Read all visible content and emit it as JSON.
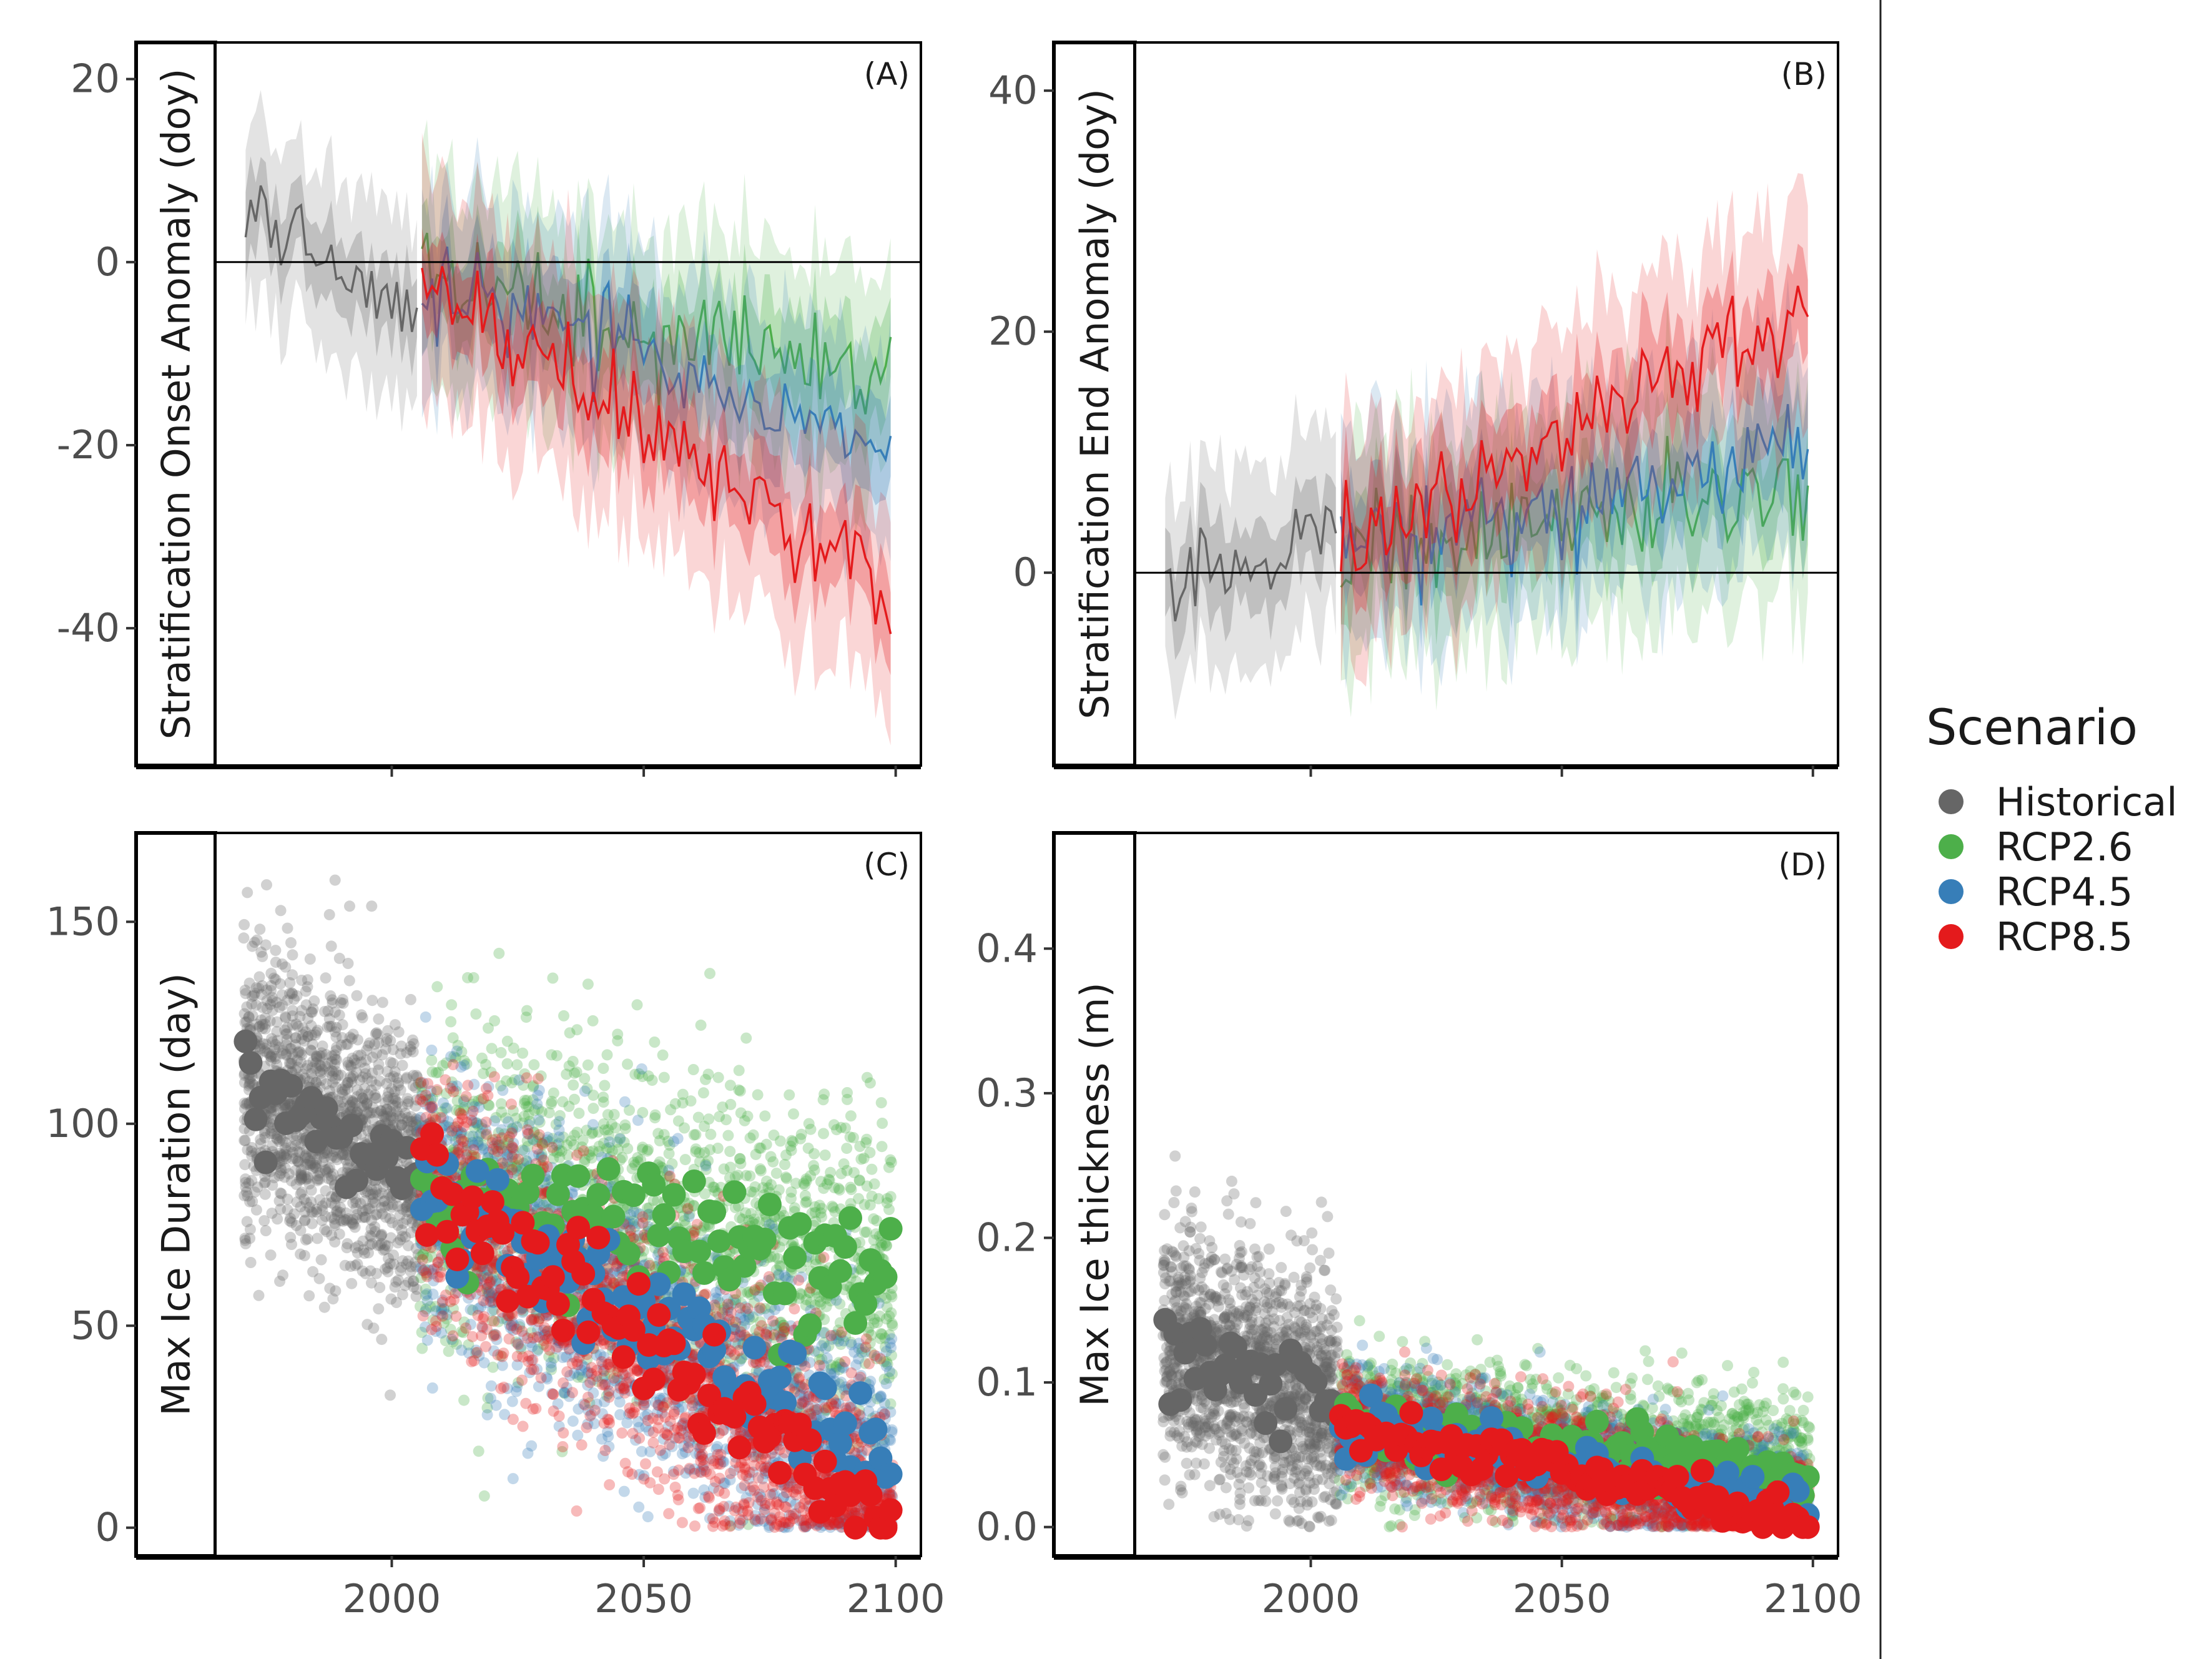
{
  "chart_data": [
    {
      "panel": "(A)",
      "type": "line",
      "ylabel": "Stratification Onset Anomaly (doy)",
      "xlim": [
        1965,
        2105
      ],
      "ylim": [
        -55,
        24
      ],
      "xticks": [
        2000,
        2050,
        2100
      ],
      "yticks": [
        20,
        0,
        -20,
        -40
      ],
      "ytick_labels": [
        "20",
        "0",
        "-20",
        "-40"
      ],
      "hline": 0,
      "xtick_labels_shown": false,
      "series": [
        {
          "name": "Historical",
          "color": "#666666",
          "x": [
            1971,
            2005
          ],
          "center": [
            6,
            -7
          ],
          "band_inner": 4,
          "band_outer": 10
        },
        {
          "name": "RCP2.6",
          "color": "#4daf4a",
          "x": [
            2006,
            2099
          ],
          "center": [
            -2,
            -12
          ],
          "band_inner": 5,
          "band_outer": 11
        },
        {
          "name": "RCP4.5",
          "color": "#377eb8",
          "x": [
            2006,
            2099
          ],
          "center": [
            -2,
            -20
          ],
          "band_inner": 5,
          "band_outer": 11
        },
        {
          "name": "RCP8.5",
          "color": "#e41a1c",
          "x": [
            2006,
            2099
          ],
          "center": [
            -2,
            -36
          ],
          "band_inner": 5,
          "band_outer": 12
        }
      ]
    },
    {
      "panel": "(B)",
      "type": "line",
      "ylabel": "Stratification End Anomaly (doy)",
      "xlim": [
        1965,
        2105
      ],
      "ylim": [
        -16,
        44
      ],
      "xticks": [
        2000,
        2050,
        2100
      ],
      "yticks": [
        40,
        20,
        0
      ],
      "ytick_labels": [
        "40",
        "20",
        "0"
      ],
      "hline": 0,
      "xtick_labels_shown": false,
      "series": [
        {
          "name": "Historical",
          "color": "#666666",
          "x": [
            1971,
            2005
          ],
          "center": [
            -3,
            3
          ],
          "band_inner": 3.5,
          "band_outer": 8
        },
        {
          "name": "RCP2.6",
          "color": "#4daf4a",
          "x": [
            2006,
            2099
          ],
          "center": [
            2,
            6
          ],
          "band_inner": 4,
          "band_outer": 9
        },
        {
          "name": "RCP4.5",
          "color": "#377eb8",
          "x": [
            2006,
            2099
          ],
          "center": [
            2,
            10
          ],
          "band_inner": 4,
          "band_outer": 9
        },
        {
          "name": "RCP8.5",
          "color": "#e41a1c",
          "x": [
            2006,
            2099
          ],
          "center": [
            2,
            22
          ],
          "band_inner": 4,
          "band_outer": 9
        }
      ]
    },
    {
      "panel": "(C)",
      "type": "scatter",
      "ylabel": "Max Ice Duration (day)",
      "xlim": [
        1965,
        2105
      ],
      "ylim": [
        -7,
        172
      ],
      "xticks": [
        2000,
        2050,
        2100
      ],
      "xtick_labels": [
        "2000",
        "2050",
        "2100"
      ],
      "yticks": [
        150,
        100,
        50,
        0
      ],
      "ytick_labels": [
        "150",
        "100",
        "50",
        "0"
      ],
      "series": [
        {
          "name": "Historical",
          "color": "#666666",
          "x": [
            1971,
            2005
          ],
          "mean": [
            110,
            88
          ],
          "spread": 28
        },
        {
          "name": "RCP2.6",
          "color": "#4daf4a",
          "x": [
            2006,
            2099
          ],
          "mean": [
            85,
            60
          ],
          "spread": 35
        },
        {
          "name": "RCP4.5",
          "color": "#377eb8",
          "x": [
            2006,
            2099
          ],
          "mean": [
            85,
            12
          ],
          "spread": 30
        },
        {
          "name": "RCP8.5",
          "color": "#e41a1c",
          "x": [
            2006,
            2099
          ],
          "mean": [
            85,
            1
          ],
          "spread": 28
        }
      ]
    },
    {
      "panel": "(D)",
      "type": "scatter",
      "ylabel": "Max Ice thickness (m)",
      "xlim": [
        1965,
        2105
      ],
      "ylim": [
        -0.02,
        0.48
      ],
      "xticks": [
        2000,
        2050,
        2100
      ],
      "xtick_labels": [
        "2000",
        "2050",
        "2100"
      ],
      "yticks": [
        0.4,
        0.3,
        0.2,
        0.1,
        0.0
      ],
      "ytick_labels": [
        "0.4",
        "0.3",
        "0.2",
        "0.1",
        "0.0"
      ],
      "series": [
        {
          "name": "Historical",
          "color": "#666666",
          "x": [
            1971,
            2005
          ],
          "mean": [
            0.13,
            0.08
          ],
          "spread": 0.07
        },
        {
          "name": "RCP2.6",
          "color": "#4daf4a",
          "x": [
            2006,
            2099
          ],
          "mean": [
            0.07,
            0.04
          ],
          "spread": 0.04
        },
        {
          "name": "RCP4.5",
          "color": "#377eb8",
          "x": [
            2006,
            2099
          ],
          "mean": [
            0.07,
            0.015
          ],
          "spread": 0.035
        },
        {
          "name": "RCP8.5",
          "color": "#e41a1c",
          "x": [
            2006,
            2099
          ],
          "mean": [
            0.07,
            0.005
          ],
          "spread": 0.035
        }
      ]
    }
  ],
  "legend": {
    "title": "Scenario",
    "placement": "right",
    "entries": [
      {
        "label": "Historical",
        "color": "#666666"
      },
      {
        "label": "RCP2.6",
        "color": "#4daf4a"
      },
      {
        "label": "RCP4.5",
        "color": "#377eb8"
      },
      {
        "label": "RCP8.5",
        "color": "#e41a1c"
      }
    ]
  }
}
